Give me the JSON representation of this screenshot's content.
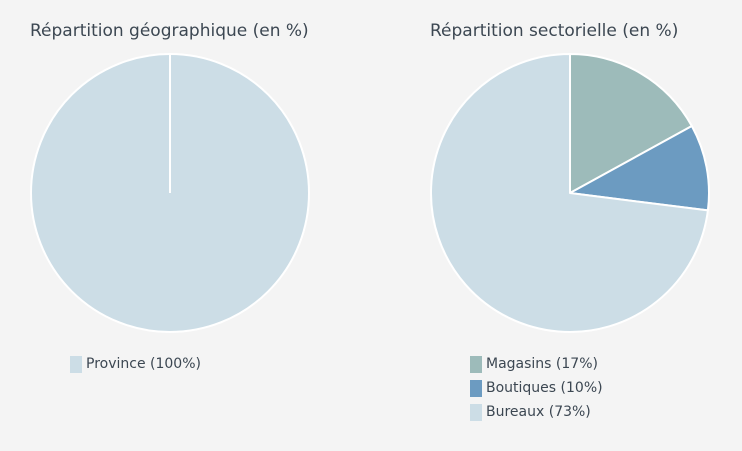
{
  "chart_data": [
    {
      "type": "pie",
      "title": "Répartition géographique (en %)",
      "slices": [
        {
          "label": "Province",
          "value": 100,
          "color": "#ccdde6",
          "legend": "Province (100%)"
        }
      ]
    },
    {
      "type": "pie",
      "title": "Répartition sectorielle (en %)",
      "slices": [
        {
          "label": "Magasins",
          "value": 17,
          "color": "#9dbbba",
          "legend": "Magasins (17%)"
        },
        {
          "label": "Boutiques",
          "value": 10,
          "color": "#6c9bc1",
          "legend": "Boutiques (10%)"
        },
        {
          "label": "Bureaux",
          "value": 73,
          "color": "#ccdde6",
          "legend": "Bureaux (73%)"
        }
      ]
    }
  ]
}
